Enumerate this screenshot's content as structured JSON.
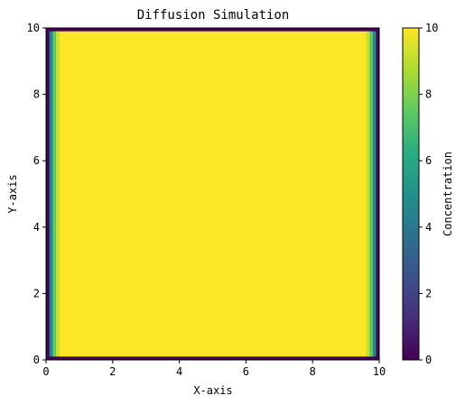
{
  "chart_data": {
    "type": "heatmap",
    "title": "Diffusion Simulation",
    "xlabel": "X-axis",
    "ylabel": "Y-axis",
    "xlim": [
      0,
      10
    ],
    "ylim": [
      0,
      10
    ],
    "x_ticks": [
      "0",
      "2",
      "4",
      "6",
      "8",
      "10"
    ],
    "y_ticks": [
      "0",
      "2",
      "4",
      "6",
      "8",
      "10"
    ],
    "colormap": "viridis",
    "colorbar": {
      "label": "Concentration",
      "range": [
        0,
        10
      ],
      "ticks": [
        "0",
        "2",
        "4",
        "6",
        "8",
        "10"
      ]
    },
    "grid": false,
    "grid_shape": [
      100,
      100
    ],
    "boundary_value": 0,
    "interior_value": 10,
    "edge_columns_left": [
      {
        "x": 0.0,
        "value": 0
      },
      {
        "x": 0.1,
        "value": 4.5
      },
      {
        "x": 0.2,
        "value": 7.5
      },
      {
        "x": 0.3,
        "value": 9.2
      }
    ],
    "edge_columns_right": [
      {
        "x": 9.9,
        "value": 0
      },
      {
        "x": 9.8,
        "value": 4.5
      },
      {
        "x": 9.7,
        "value": 7.5
      },
      {
        "x": 9.6,
        "value": 9.2
      }
    ],
    "top_row_value": 0,
    "bottom_row_value": 0
  }
}
